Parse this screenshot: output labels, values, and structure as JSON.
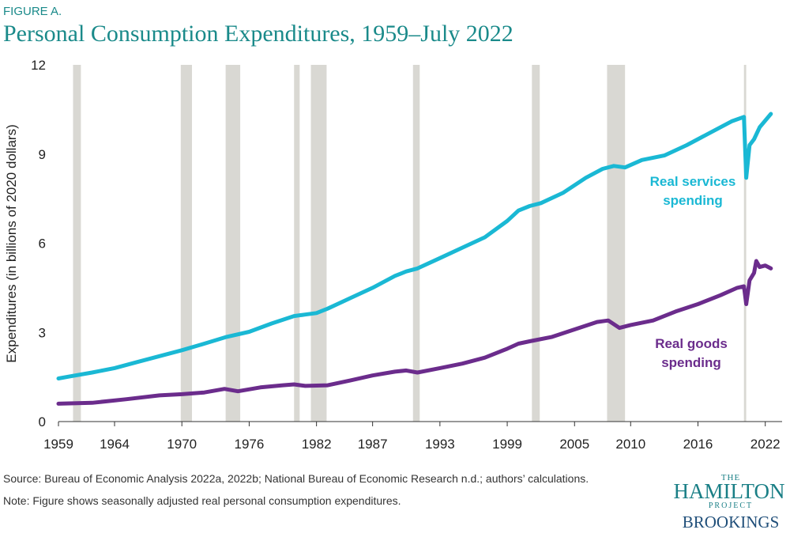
{
  "chart_data": {
    "type": "line",
    "figure_label": "FIGURE A.",
    "title": "Personal Consumption Expenditures, 1959–July 2022",
    "y_label": "Expenditures (in billions of 2020 dollars)",
    "xlim": [
      1959,
      2023.5
    ],
    "xticks": [
      1959,
      1964,
      1970,
      1976,
      1982,
      1987,
      1993,
      1999,
      2005,
      2010,
      2016,
      2022
    ],
    "ylim": [
      0,
      12
    ],
    "yticks": [
      0,
      3,
      6,
      9,
      12
    ],
    "grid": false,
    "recession_color": "#d9d8d3",
    "recessions": [
      [
        1960.3,
        1961.0
      ],
      [
        1969.9,
        1970.9
      ],
      [
        1973.9,
        1975.2
      ],
      [
        1980.0,
        1980.5
      ],
      [
        1981.5,
        1982.9
      ],
      [
        1990.6,
        1991.2
      ],
      [
        2001.2,
        2001.9
      ],
      [
        2007.9,
        2009.5
      ],
      [
        2020.1,
        2020.3
      ]
    ],
    "series": [
      {
        "name": "Real services spending",
        "color": "#1ab8d4",
        "x": [
          1959,
          1960,
          1962,
          1964,
          1966,
          1968,
          1970,
          1972,
          1974,
          1976,
          1978,
          1980,
          1981,
          1982,
          1983,
          1985,
          1987,
          1989,
          1990,
          1991,
          1993,
          1995,
          1997,
          1999,
          2000,
          2001,
          2002,
          2004,
          2006,
          2007.5,
          2008.5,
          2009.5,
          2011,
          2013,
          2015,
          2017,
          2019,
          2020.1,
          2020.3,
          2020.6,
          2021,
          2021.5,
          2022.5
        ],
        "values": [
          1.45,
          1.52,
          1.65,
          1.8,
          2.0,
          2.2,
          2.4,
          2.62,
          2.85,
          3.02,
          3.3,
          3.55,
          3.6,
          3.65,
          3.8,
          4.15,
          4.5,
          4.9,
          5.05,
          5.15,
          5.5,
          5.85,
          6.2,
          6.75,
          7.1,
          7.25,
          7.35,
          7.7,
          8.2,
          8.5,
          8.6,
          8.55,
          8.8,
          8.95,
          9.3,
          9.7,
          10.1,
          10.25,
          8.2,
          9.3,
          9.5,
          9.9,
          10.35
        ]
      },
      {
        "name": "Real goods spending",
        "color": "#6b2c8c",
        "x": [
          1959,
          1962,
          1965,
          1968,
          1970,
          1972,
          1973.8,
          1975,
          1977,
          1979,
          1980,
          1981,
          1983,
          1985,
          1987,
          1989,
          1990,
          1991,
          1993,
          1995,
          1997,
          1999,
          2000,
          2001,
          2003,
          2005,
          2007,
          2008,
          2009,
          2010,
          2012,
          2014,
          2016,
          2018,
          2019.5,
          2020.1,
          2020.3,
          2020.6,
          2021,
          2021.2,
          2021.5,
          2022,
          2022.5
        ],
        "values": [
          0.6,
          0.63,
          0.75,
          0.88,
          0.92,
          0.98,
          1.1,
          1.02,
          1.15,
          1.22,
          1.25,
          1.2,
          1.22,
          1.38,
          1.55,
          1.68,
          1.72,
          1.65,
          1.8,
          1.95,
          2.15,
          2.45,
          2.62,
          2.7,
          2.85,
          3.1,
          3.35,
          3.4,
          3.15,
          3.25,
          3.4,
          3.7,
          3.95,
          4.25,
          4.5,
          4.55,
          3.95,
          4.75,
          5.0,
          5.4,
          5.2,
          5.25,
          5.15
        ]
      }
    ]
  },
  "source": "Source: Bureau of Economic Analysis 2022a, 2022b; National Bureau of Economic Research n.d.; authors’ calculations.",
  "note": "Note: Figure shows seasonally adjusted real personal consumption expenditures.",
  "logo": {
    "top": "THE",
    "main": "HAMILTON",
    "sub": "PROJECT",
    "org": "BROOKINGS"
  }
}
